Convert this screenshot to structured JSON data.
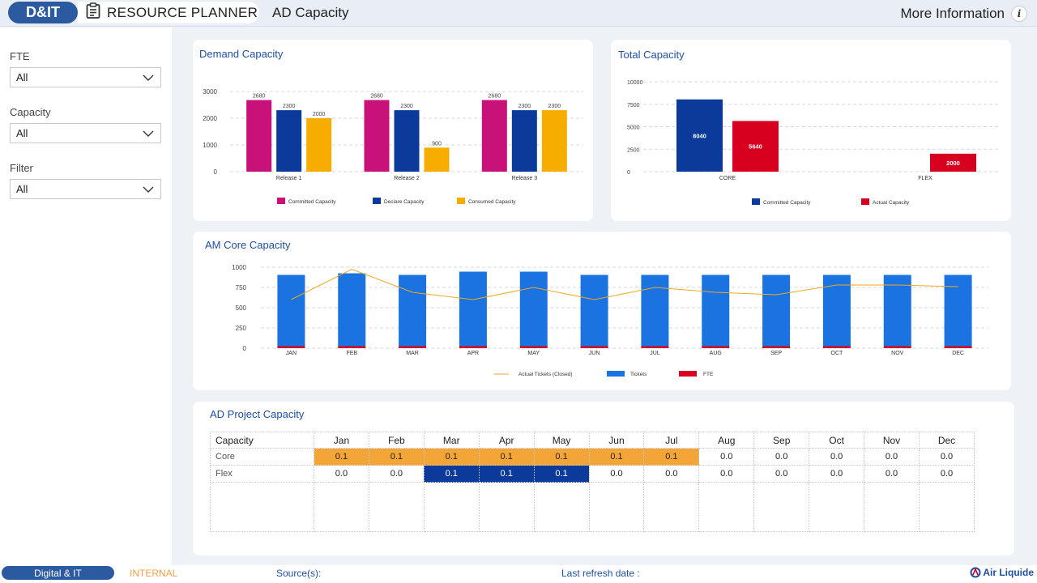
{
  "header": {
    "brand": "D&IT",
    "app_title": "RESOURCE PLANNER",
    "page_title": "AD Capacity",
    "more_info": "More Information",
    "info_glyph": "i"
  },
  "filters": [
    {
      "label": "FTE",
      "value": "All"
    },
    {
      "label": "Capacity",
      "value": "All"
    },
    {
      "label": "Filter",
      "value": "All"
    }
  ],
  "colors": {
    "magenta": "#c8127a",
    "navy": "#0b3a9a",
    "amber": "#f7ad00",
    "red": "#d7001f",
    "blue": "#1a73e0",
    "orange_cell": "#f3a637"
  },
  "chart_data": [
    {
      "type": "bar",
      "title": "Demand Capacity",
      "categories": [
        "Release 1",
        "Release 2",
        "Release 3"
      ],
      "series": [
        {
          "name": "Committed Capacity",
          "values": [
            2680,
            2680,
            2680
          ]
        },
        {
          "name": "Declare Capacity",
          "values": [
            2300,
            2300,
            2300
          ]
        },
        {
          "name": "Consumed Capacity",
          "values": [
            2000,
            900,
            2300
          ]
        }
      ],
      "yticks": [
        "0",
        "1000",
        "2000",
        "3000"
      ],
      "ylim": [
        0,
        3000
      ],
      "grid": true,
      "legend": "bottom"
    },
    {
      "type": "bar",
      "title": "Total Capacity",
      "categories": [
        "CORE",
        "FLEX"
      ],
      "series": [
        {
          "name": "Committed Capacity",
          "values": [
            8040,
            0
          ]
        },
        {
          "name": "Actual Capacity",
          "values": [
            5640,
            2000
          ]
        }
      ],
      "value_labels": [
        [
          "8040",
          ""
        ],
        [
          "5640",
          "2000"
        ]
      ],
      "yticks": [
        "0",
        "2500",
        "5000",
        "7500",
        "10000"
      ],
      "ylim": [
        0,
        10000
      ],
      "grid": true,
      "legend": "bottom"
    },
    {
      "type": "bar",
      "title": "AM Core Capacity",
      "categories": [
        "JAN",
        "FEB",
        "MAR",
        "APR",
        "MAY",
        "JUN",
        "JUL",
        "AUG",
        "SEP",
        "OCT",
        "NOV",
        "DEC"
      ],
      "series": [
        {
          "name": "Tickets",
          "values": [
            880,
            900,
            880,
            920,
            920,
            880,
            880,
            880,
            880,
            880,
            880,
            880
          ]
        },
        {
          "name": "FTE",
          "values": [
            25,
            25,
            25,
            25,
            25,
            25,
            25,
            25,
            25,
            25,
            25,
            25
          ]
        },
        {
          "name": "Actual Tickets (Closed)",
          "type": "line",
          "values": [
            600,
            975,
            690,
            600,
            750,
            600,
            750,
            690,
            660,
            780,
            780,
            760
          ]
        }
      ],
      "yticks": [
        "0",
        "250",
        "500",
        "750",
        "1000"
      ],
      "ylim": [
        0,
        1000
      ],
      "grid": true,
      "legend": "bottom"
    }
  ],
  "ad_project": {
    "title": "AD Project Capacity",
    "header_label": "Capacity",
    "months": [
      "Jan",
      "Feb",
      "Mar",
      "Apr",
      "May",
      "Jun",
      "Jul",
      "Aug",
      "Sep",
      "Oct",
      "Nov",
      "Dec"
    ],
    "rows": [
      {
        "label": "Core",
        "values": [
          "0.1",
          "0.1",
          "0.1",
          "0.1",
          "0.1",
          "0.1",
          "0.1",
          "0.0",
          "0.0",
          "0.0",
          "0.0",
          "0.0"
        ],
        "highlight": [
          "orange",
          "orange",
          "orange",
          "orange",
          "orange",
          "orange",
          "orange",
          "",
          "",
          "",
          "",
          ""
        ]
      },
      {
        "label": "Flex",
        "values": [
          "0.0",
          "0.0",
          "0.1",
          "0.1",
          "0.1",
          "0.0",
          "0.0",
          "0.0",
          "0.0",
          "0.0",
          "0.0",
          "0.0"
        ],
        "highlight": [
          "",
          "",
          "navy",
          "navy",
          "navy",
          "",
          "",
          "",
          "",
          "",
          "",
          ""
        ]
      }
    ]
  },
  "footer": {
    "org": "Digital & IT",
    "classification": "INTERNAL",
    "sources": "Source(s):",
    "refresh": "Last refresh date :",
    "logo_text": "Air Liquide"
  }
}
